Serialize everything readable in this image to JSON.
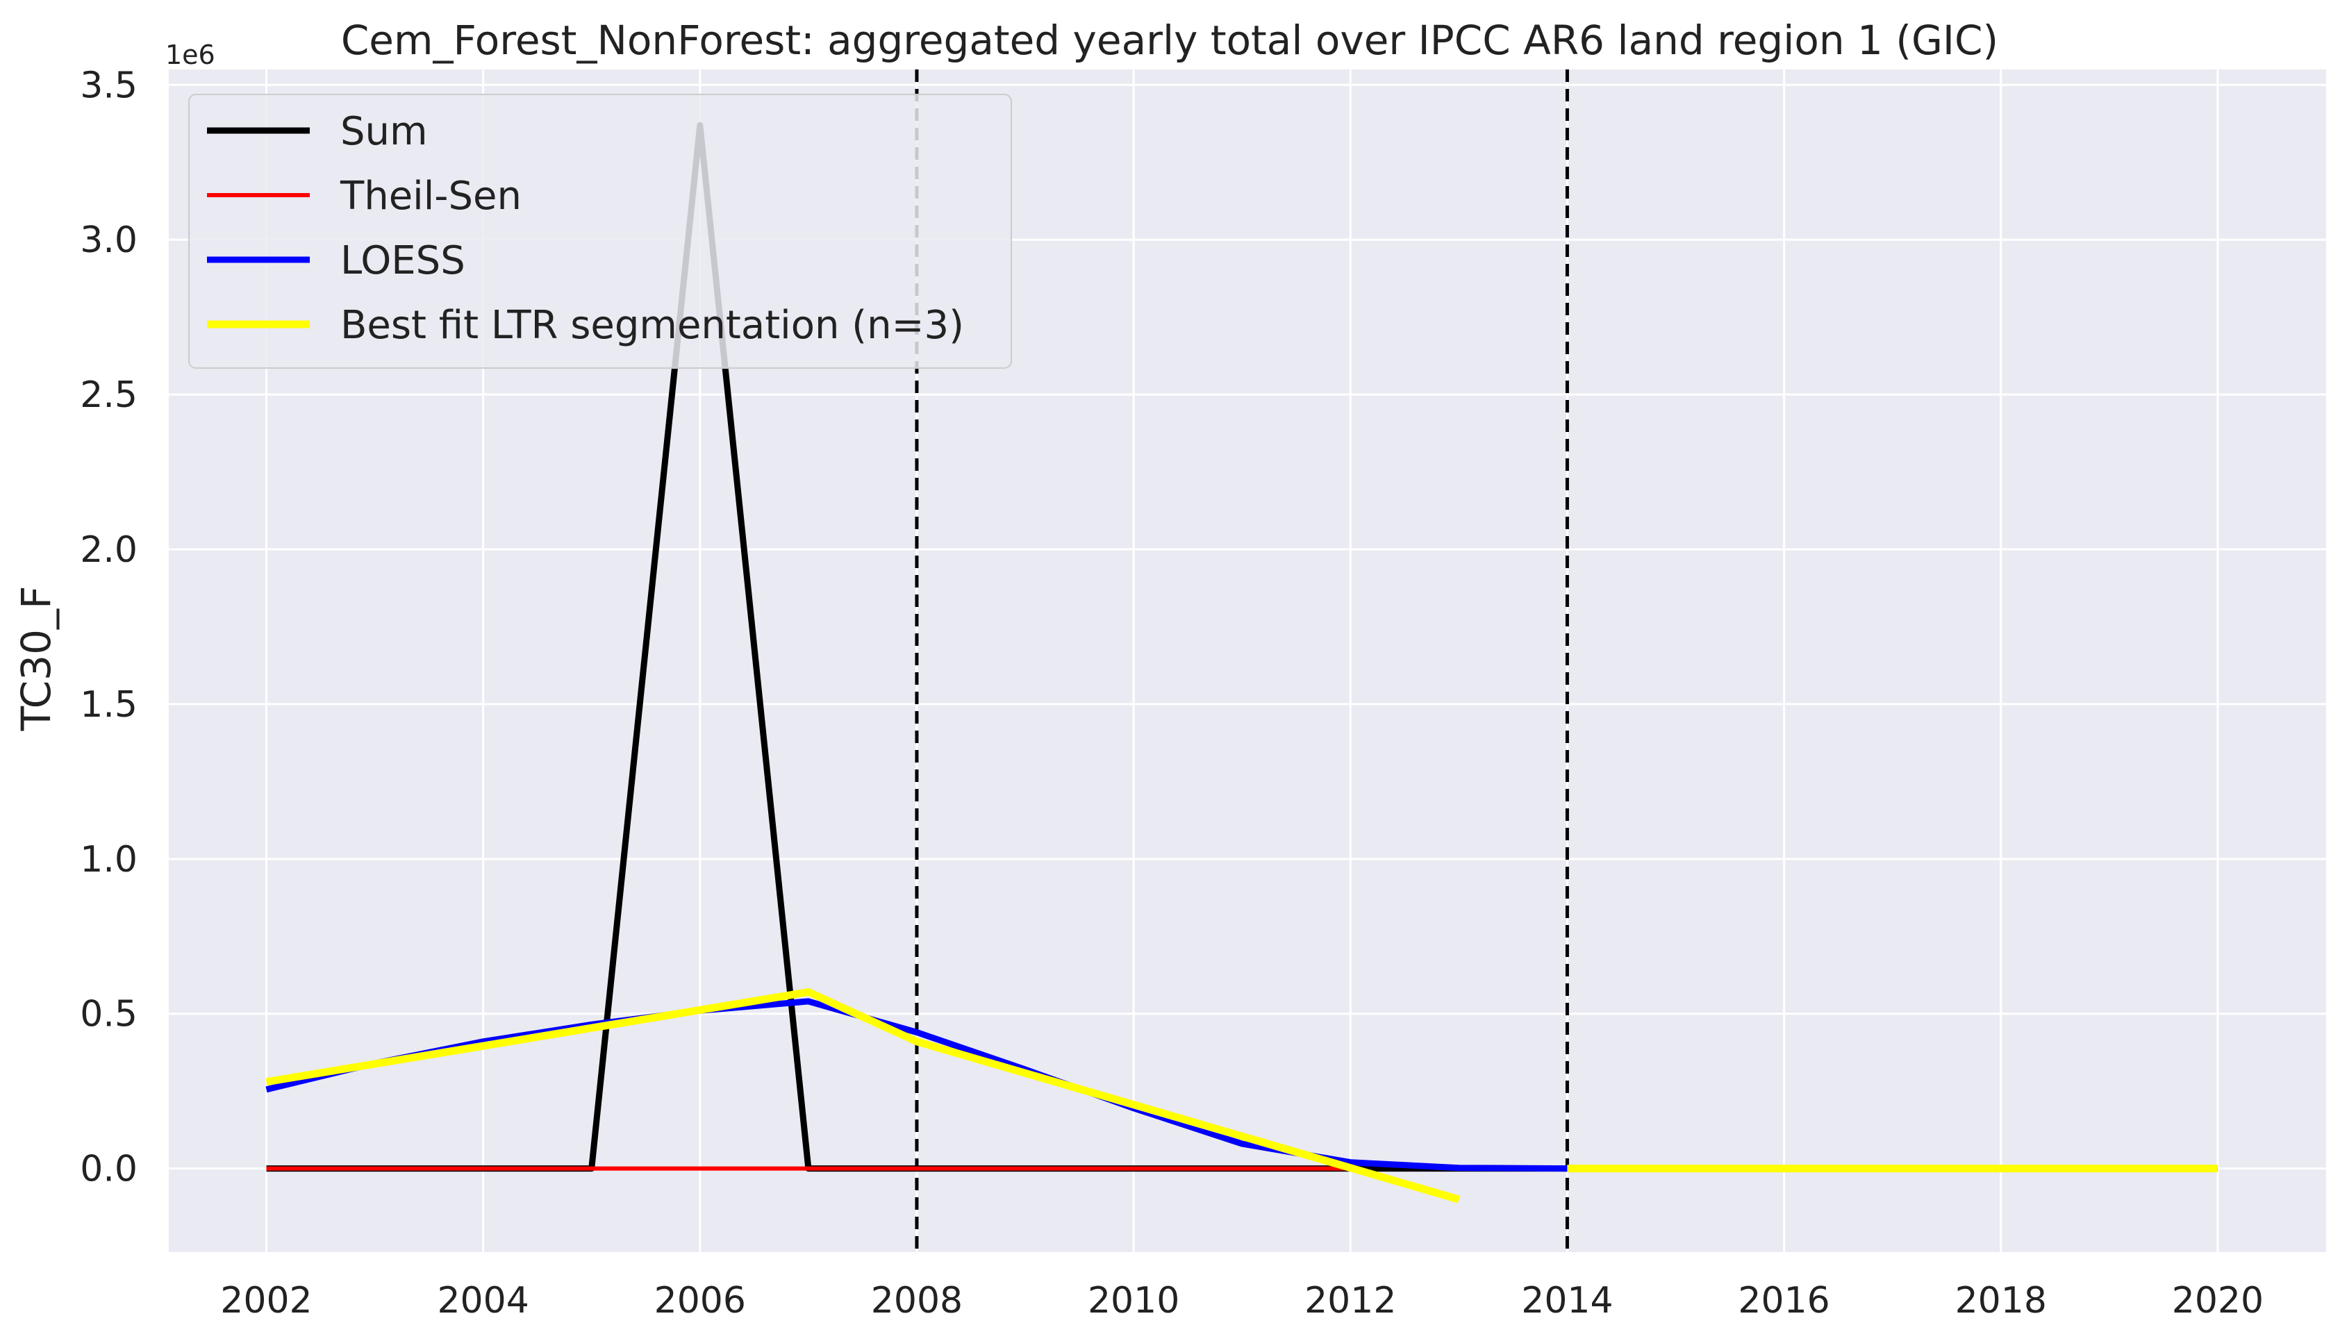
{
  "chart_data": {
    "type": "line",
    "title": "Cem_Forest_NonForest: aggregated yearly total over IPCC AR6 land region 1 (GIC)",
    "xlabel": "",
    "ylabel": "TC30_F",
    "y_offset_label": "1e6",
    "xlim": [
      2001.1,
      2021.0
    ],
    "ylim": [
      -270000,
      3550000
    ],
    "x_ticks": [
      2002,
      2004,
      2006,
      2008,
      2010,
      2012,
      2014,
      2016,
      2018,
      2020
    ],
    "y_ticks": [
      0.0,
      0.5,
      1.0,
      1.5,
      2.0,
      2.5,
      3.0,
      3.5
    ],
    "y_tick_scale": 1000000,
    "grid": true,
    "legend_position": "upper-left",
    "background_color": "#eaeaf2",
    "series": [
      {
        "name": "Sum",
        "color": "#000000",
        "x": [
          2002,
          2003,
          2004,
          2005,
          2006,
          2007,
          2008,
          2009,
          2010,
          2011,
          2012,
          2013,
          2014,
          2015,
          2016,
          2017,
          2018,
          2019,
          2020
        ],
        "y": [
          0,
          0,
          0,
          0,
          3370000,
          0,
          0,
          0,
          0,
          0,
          0,
          0,
          0,
          0,
          0,
          0,
          0,
          0,
          0
        ]
      },
      {
        "name": "Theil-Sen",
        "color": "#ff0000",
        "x": [
          2002,
          2012
        ],
        "y": [
          0,
          0
        ]
      },
      {
        "name": "LOESS",
        "color": "#0000ff",
        "x": [
          2002,
          2003,
          2004,
          2005,
          2006,
          2007,
          2008,
          2009,
          2010,
          2011,
          2012,
          2013,
          2014
        ],
        "y": [
          255000,
          340000,
          410000,
          465000,
          510000,
          540000,
          440000,
          320000,
          195000,
          80000,
          20000,
          2000,
          0
        ]
      },
      {
        "name": "Best fit LTR segmentation (n=3)",
        "color": "#ffff00",
        "x": [
          2002,
          2007,
          2008,
          2013,
          null,
          2014,
          2020
        ],
        "y": [
          280000,
          570000,
          410000,
          -100000,
          null,
          0,
          0
        ]
      }
    ],
    "vlines": [
      {
        "x": 2008,
        "style": "dashed",
        "color": "#000000"
      },
      {
        "x": 2014,
        "style": "dashed",
        "color": "#000000"
      }
    ]
  }
}
